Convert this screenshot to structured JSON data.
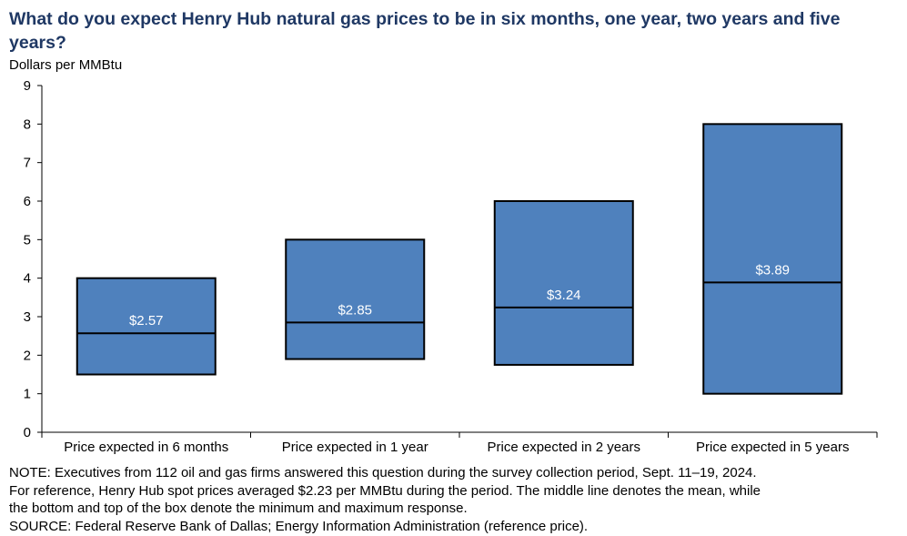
{
  "title": "What do you expect Henry Hub natural gas prices to be in six months, one year, two years and five years?",
  "chart_data": {
    "type": "box",
    "ylabel": "Dollars per MMBtu",
    "ylim": [
      0,
      9
    ],
    "yticks": [
      0,
      1,
      2,
      3,
      4,
      5,
      6,
      7,
      8,
      9
    ],
    "categories": [
      "Price expected in 6 months",
      "Price expected in 1 year",
      "Price expected in 2 years",
      "Price expected in 5 years"
    ],
    "min": [
      1.5,
      1.9,
      1.75,
      1.0
    ],
    "max": [
      4.0,
      5.0,
      6.0,
      8.0
    ],
    "mean": [
      2.57,
      2.85,
      3.24,
      3.89
    ],
    "mean_labels": [
      "$2.57",
      "$2.85",
      "$3.24",
      "$3.89"
    ],
    "box_color": "#4f81bd"
  },
  "notes": [
    "NOTE: Executives from 112 oil and gas firms answered this question during the survey collection period, Sept. 11–19, 2024.",
    "For reference, Henry Hub spot prices averaged $2.23 per MMBtu during the period. The middle line denotes the mean, while",
    "the bottom and top of the box denote the minimum and maximum response.",
    "SOURCE: Federal Reserve Bank of Dallas; Energy Information Administration (reference price)."
  ]
}
